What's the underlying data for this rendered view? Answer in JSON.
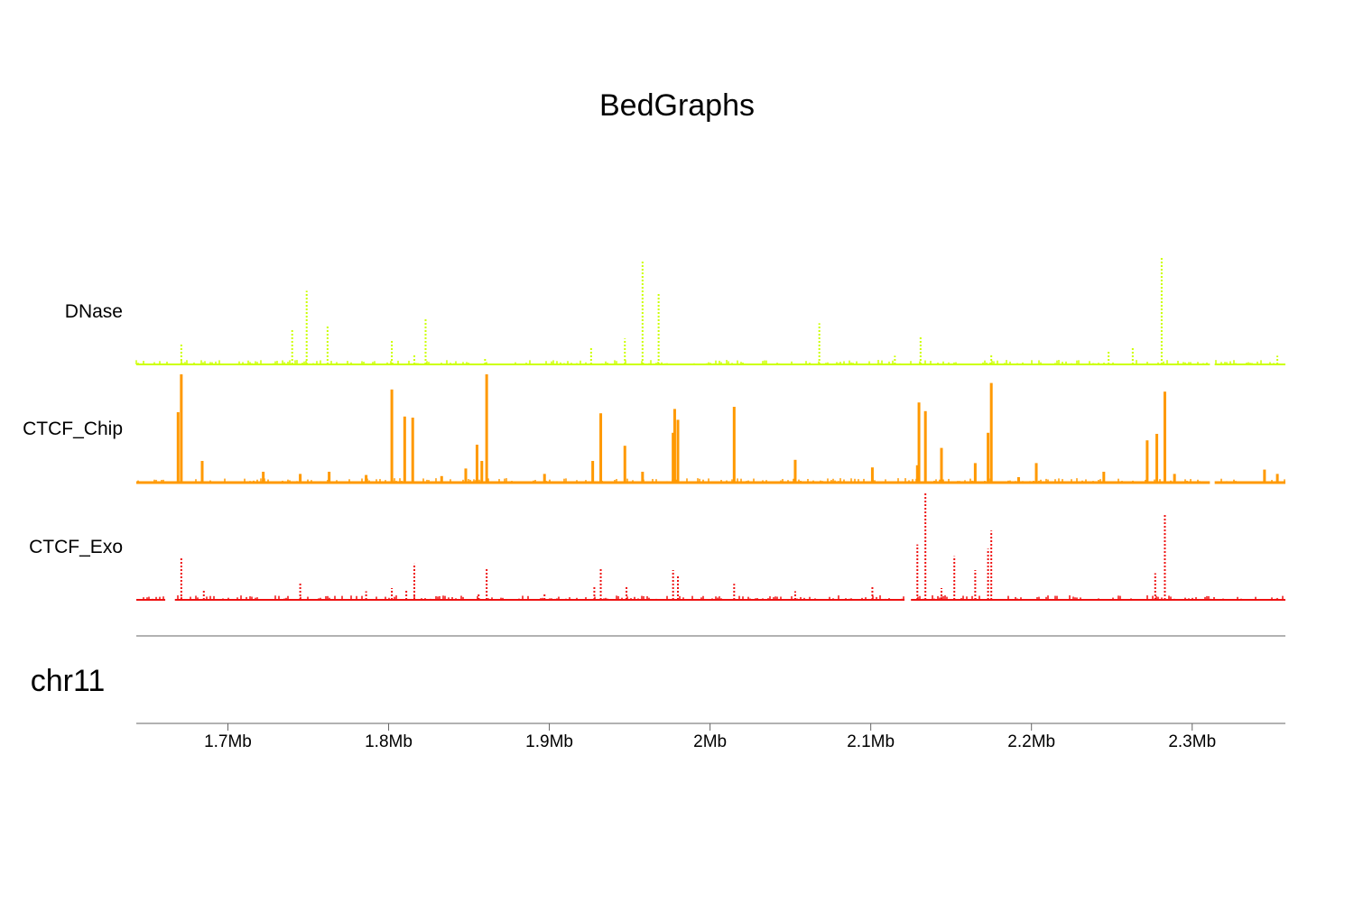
{
  "chart_data": {
    "type": "bedgraph",
    "title": "BedGraphs",
    "chromosome": "chr11",
    "xlim": [
      1643000,
      2358000
    ],
    "x_ticks": [
      {
        "value": 1700000,
        "label": "1.7Mb"
      },
      {
        "value": 1800000,
        "label": "1.8Mb"
      },
      {
        "value": 1900000,
        "label": "1.9Mb"
      },
      {
        "value": 2000000,
        "label": "2Mb"
      },
      {
        "value": 2100000,
        "label": "2.1Mb"
      },
      {
        "value": 2200000,
        "label": "2.2Mb"
      },
      {
        "value": 2300000,
        "label": "2.3Mb"
      }
    ],
    "tracks": [
      {
        "name": "DNase",
        "color": "#ccff00",
        "style": "points",
        "ylim": [
          0,
          1
        ],
        "gaps": [
          [
            2311000,
            2314000
          ]
        ],
        "peaks": [
          {
            "x": 1671000,
            "y": 0.2
          },
          {
            "x": 1740000,
            "y": 0.32
          },
          {
            "x": 1749000,
            "y": 0.68
          },
          {
            "x": 1762000,
            "y": 0.35
          },
          {
            "x": 1802000,
            "y": 0.22
          },
          {
            "x": 1816000,
            "y": 0.1
          },
          {
            "x": 1823000,
            "y": 0.43
          },
          {
            "x": 1860000,
            "y": 0.05
          },
          {
            "x": 1926000,
            "y": 0.16
          },
          {
            "x": 1947000,
            "y": 0.24
          },
          {
            "x": 1958000,
            "y": 0.96
          },
          {
            "x": 1968000,
            "y": 0.65
          },
          {
            "x": 2068000,
            "y": 0.38
          },
          {
            "x": 2115000,
            "y": 0.08
          },
          {
            "x": 2131000,
            "y": 0.25
          },
          {
            "x": 2175000,
            "y": 0.1
          },
          {
            "x": 2248000,
            "y": 0.12
          },
          {
            "x": 2263000,
            "y": 0.16
          },
          {
            "x": 2281000,
            "y": 1.0
          },
          {
            "x": 2353000,
            "y": 0.08
          }
        ]
      },
      {
        "name": "CTCF_Chip",
        "color": "#ff9900",
        "style": "bars",
        "ylim": [
          0,
          1
        ],
        "gaps": [
          [
            2311000,
            2314000
          ]
        ],
        "peaks": [
          {
            "x": 1669000,
            "y": 0.65
          },
          {
            "x": 1671000,
            "y": 1.0
          },
          {
            "x": 1684000,
            "y": 0.2
          },
          {
            "x": 1722000,
            "y": 0.1
          },
          {
            "x": 1745000,
            "y": 0.08
          },
          {
            "x": 1763000,
            "y": 0.1
          },
          {
            "x": 1786000,
            "y": 0.07
          },
          {
            "x": 1802000,
            "y": 0.86
          },
          {
            "x": 1810000,
            "y": 0.61
          },
          {
            "x": 1815000,
            "y": 0.6
          },
          {
            "x": 1833000,
            "y": 0.06
          },
          {
            "x": 1848000,
            "y": 0.13
          },
          {
            "x": 1855000,
            "y": 0.35
          },
          {
            "x": 1858000,
            "y": 0.2
          },
          {
            "x": 1861000,
            "y": 1.0
          },
          {
            "x": 1897000,
            "y": 0.08
          },
          {
            "x": 1927000,
            "y": 0.2
          },
          {
            "x": 1932000,
            "y": 0.64
          },
          {
            "x": 1947000,
            "y": 0.34
          },
          {
            "x": 1958000,
            "y": 0.1
          },
          {
            "x": 1977000,
            "y": 0.46
          },
          {
            "x": 1978000,
            "y": 0.68
          },
          {
            "x": 1980000,
            "y": 0.58
          },
          {
            "x": 2015000,
            "y": 0.7
          },
          {
            "x": 2053000,
            "y": 0.21
          },
          {
            "x": 2101000,
            "y": 0.14
          },
          {
            "x": 2129000,
            "y": 0.16
          },
          {
            "x": 2130000,
            "y": 0.74
          },
          {
            "x": 2134000,
            "y": 0.66
          },
          {
            "x": 2144000,
            "y": 0.32
          },
          {
            "x": 2165000,
            "y": 0.18
          },
          {
            "x": 2173000,
            "y": 0.46
          },
          {
            "x": 2175000,
            "y": 0.92
          },
          {
            "x": 2192000,
            "y": 0.05
          },
          {
            "x": 2203000,
            "y": 0.18
          },
          {
            "x": 2245000,
            "y": 0.1
          },
          {
            "x": 2272000,
            "y": 0.39
          },
          {
            "x": 2278000,
            "y": 0.45
          },
          {
            "x": 2283000,
            "y": 0.84
          },
          {
            "x": 2289000,
            "y": 0.08
          },
          {
            "x": 2345000,
            "y": 0.12
          },
          {
            "x": 2353000,
            "y": 0.08
          }
        ]
      },
      {
        "name": "CTCF_Exo",
        "color": "#ee1111",
        "style": "points",
        "ylim": [
          0,
          1
        ],
        "gaps": [
          [
            1661000,
            1667000
          ],
          [
            2121000,
            2125000
          ]
        ],
        "peaks": [
          {
            "x": 1671000,
            "y": 0.4
          },
          {
            "x": 1685000,
            "y": 0.1
          },
          {
            "x": 1745000,
            "y": 0.17
          },
          {
            "x": 1786000,
            "y": 0.08
          },
          {
            "x": 1802000,
            "y": 0.11
          },
          {
            "x": 1811000,
            "y": 0.1
          },
          {
            "x": 1816000,
            "y": 0.34
          },
          {
            "x": 1856000,
            "y": 0.06
          },
          {
            "x": 1861000,
            "y": 0.3
          },
          {
            "x": 1897000,
            "y": 0.06
          },
          {
            "x": 1928000,
            "y": 0.12
          },
          {
            "x": 1932000,
            "y": 0.3
          },
          {
            "x": 1948000,
            "y": 0.12
          },
          {
            "x": 1977000,
            "y": 0.28
          },
          {
            "x": 1980000,
            "y": 0.22
          },
          {
            "x": 2015000,
            "y": 0.15
          },
          {
            "x": 2053000,
            "y": 0.08
          },
          {
            "x": 2101000,
            "y": 0.13
          },
          {
            "x": 2129000,
            "y": 0.52
          },
          {
            "x": 2134000,
            "y": 1.0
          },
          {
            "x": 2144000,
            "y": 0.11
          },
          {
            "x": 2152000,
            "y": 0.41
          },
          {
            "x": 2165000,
            "y": 0.28
          },
          {
            "x": 2173000,
            "y": 0.48
          },
          {
            "x": 2175000,
            "y": 0.65
          },
          {
            "x": 2277000,
            "y": 0.25
          },
          {
            "x": 2283000,
            "y": 0.8
          }
        ]
      }
    ]
  }
}
